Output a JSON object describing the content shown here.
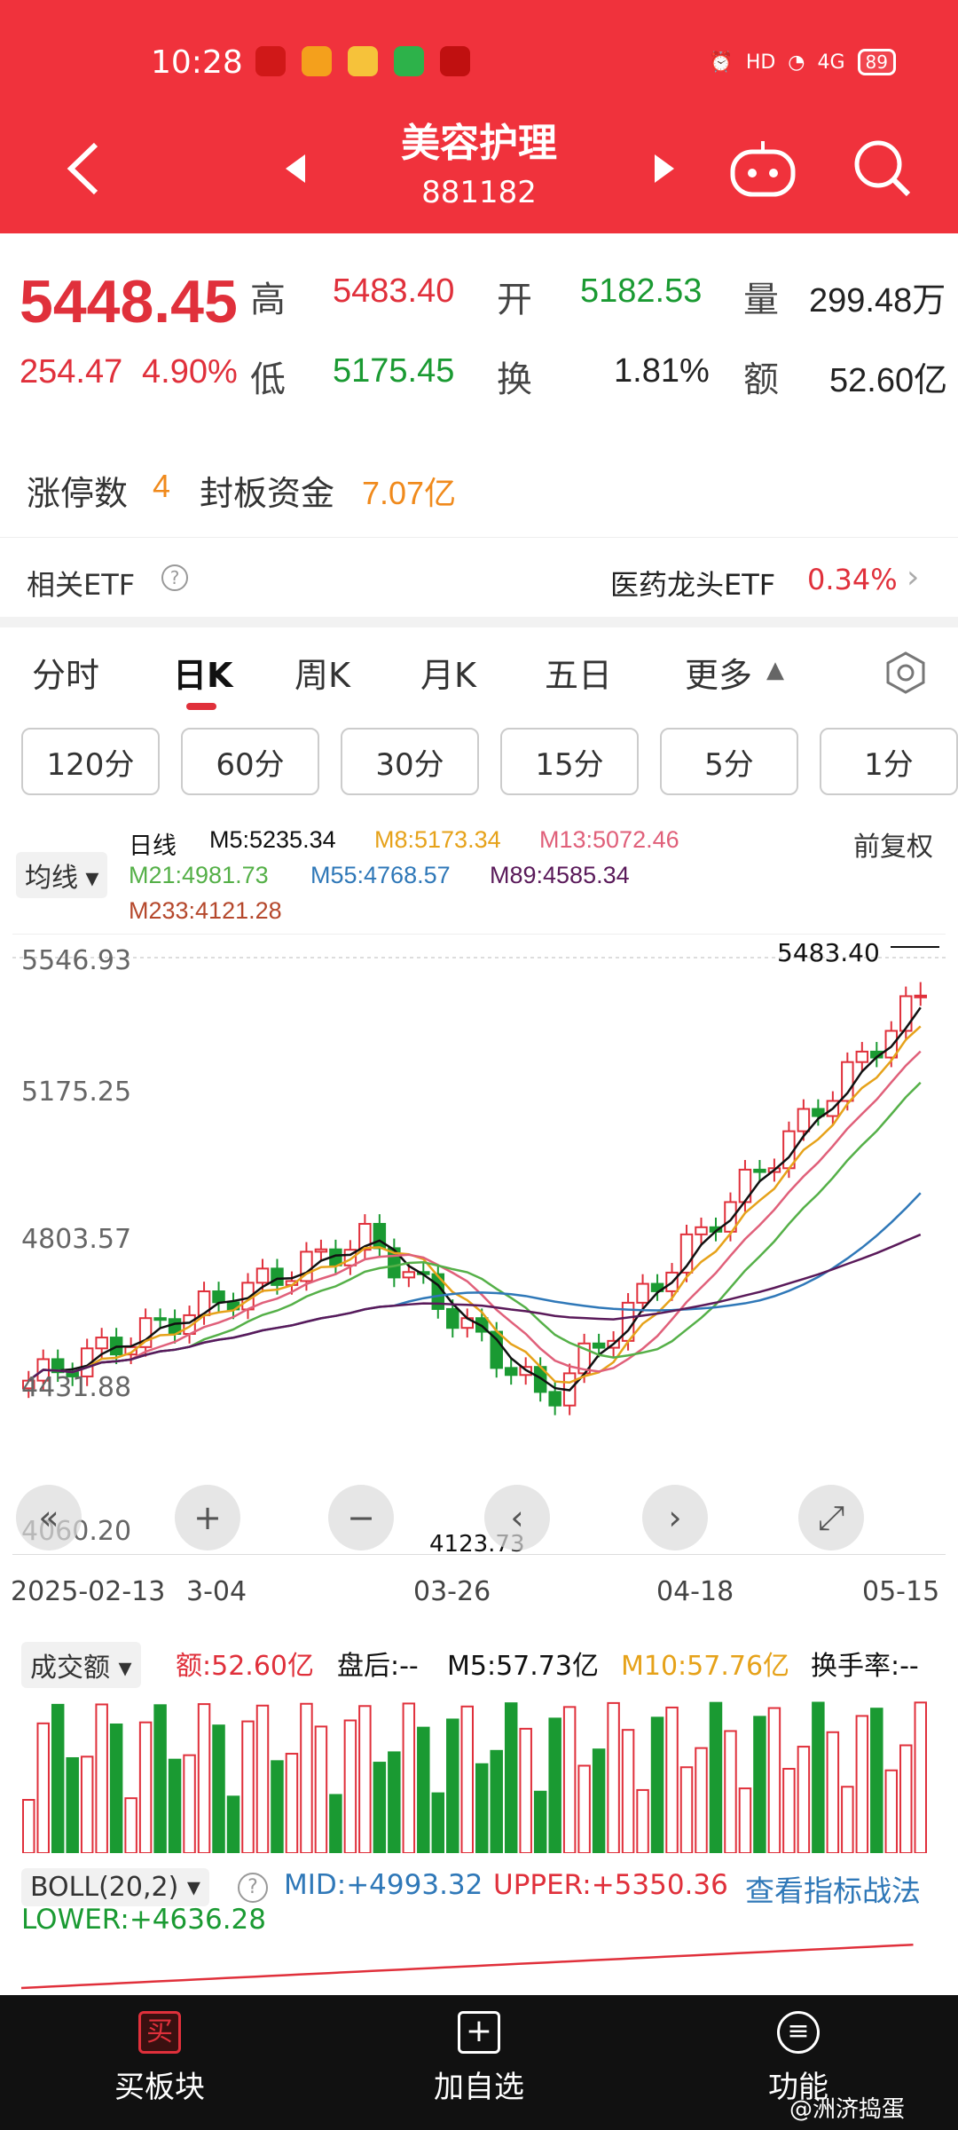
{
  "status": {
    "time": "10:28",
    "hd": "HD",
    "signal": "4G",
    "battery": "89"
  },
  "header": {
    "title": "美容护理",
    "code": "881182"
  },
  "quote": {
    "price": "5448.45",
    "change": "254.47",
    "change_pct": "4.90%",
    "high_label": "高",
    "high": "5483.40",
    "low_label": "低",
    "low": "5175.45",
    "open_label": "开",
    "open": "5182.53",
    "turnover_label": "换",
    "turnover": "1.81%",
    "volume_label": "量",
    "volume": "299.48万",
    "amount_label": "额",
    "amount": "52.60亿",
    "limit_up_label": "涨停数",
    "limit_up_count": "4",
    "seal_label": "封板资金",
    "seal_amount": "7.07亿"
  },
  "etf": {
    "label": "相关ETF",
    "name": "医药龙头ETF",
    "pct": "0.34%"
  },
  "tabs": [
    "分时",
    "日K",
    "周K",
    "月K",
    "五日",
    "更多"
  ],
  "minute_buttons": [
    "120分",
    "60分",
    "30分",
    "15分",
    "5分",
    "1分"
  ],
  "ma": {
    "selector": "均线",
    "line_type": "日线",
    "m5": "M5:5235.34",
    "m8": "M8:5173.34",
    "m13": "M13:5072.46",
    "m21": "M21:4981.73",
    "m55": "M55:4768.57",
    "m89": "M89:4585.34",
    "m233": "M233:4121.28",
    "adjust": "前复权"
  },
  "chart": {
    "y_ticks": [
      "5546.93",
      "5175.25",
      "4803.57",
      "4431.88",
      "4060.20"
    ],
    "high_mark": "5483.40",
    "low_mark": "4123.73",
    "dates": [
      "2025-02-13",
      "3-04",
      "03-26",
      "04-18",
      "05-15"
    ]
  },
  "volume": {
    "selector": "成交额",
    "amount": "额:52.60亿",
    "after_hours": "盘后:--",
    "m5": "M5:57.73亿",
    "m10": "M10:57.76亿",
    "turnover": "换手率:--"
  },
  "boll": {
    "selector": "BOLL(20,2)",
    "mid": "MID:+4993.32",
    "upper": "UPPER:+5350.36",
    "lower": "LOWER:+4636.28",
    "link": "查看指标战法"
  },
  "bottom_nav": [
    "买板块",
    "加自选",
    "功能"
  ],
  "watermark": "@洲济捣蛋",
  "chart_data": {
    "type": "candlestick",
    "x_range": [
      "2025-02-13",
      "2025-05-15"
    ],
    "ylim": [
      4060.2,
      5546.93
    ],
    "y_ticks": [
      5546.93,
      5175.25,
      4803.57,
      4431.88,
      4060.2
    ],
    "last_close": 5448.45,
    "period_high": 5483.4,
    "period_low": 4123.73,
    "ma_lines": {
      "M5": 5235.34,
      "M8": 5173.34,
      "M13": 5072.46,
      "M21": 4981.73,
      "M55": 4768.57,
      "M89": 4585.34,
      "M233": 4121.28
    },
    "colors": {
      "up": "#e0303b",
      "down": "#1a9a32",
      "M5": "#111111",
      "M8": "#e6a21a",
      "M13": "#e0607a",
      "M21": "#55b048",
      "M55": "#2f78b8",
      "M89": "#5a1a5a"
    }
  }
}
